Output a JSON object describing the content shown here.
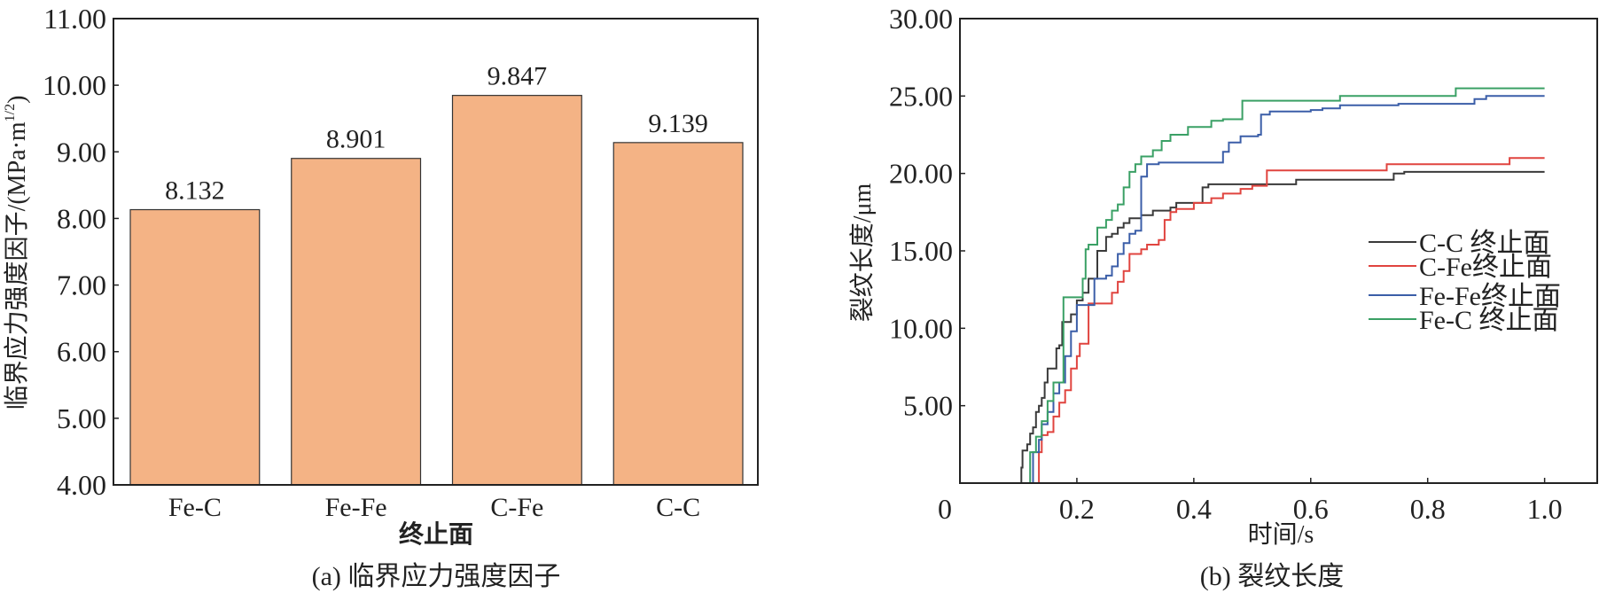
{
  "chart_data": [
    {
      "type": "bar",
      "title": "(a) 临界应力强度因子",
      "xlabel": "终止面",
      "ylabel": "临界应力强度因子/(MPa·m",
      "ylabel_sup": "1/2",
      "ylabel_end": ")",
      "categories": [
        "Fe-C",
        "Fe-Fe",
        "C-Fe",
        "C-C"
      ],
      "values": [
        8.132,
        8.901,
        9.847,
        9.139
      ],
      "value_labels": [
        "8.132",
        "8.901",
        "9.847",
        "9.139"
      ],
      "ylim": [
        4,
        11
      ],
      "yticks": [
        "4.00",
        "5.00",
        "6.00",
        "7.00",
        "8.00",
        "9.00",
        "10.00",
        "11.00"
      ],
      "colors": {
        "bar": "#f4b385",
        "edge": "#333333"
      }
    },
    {
      "type": "line",
      "title": "(b) 裂纹长度",
      "xlabel": "时间/s",
      "ylabel": "裂纹长度/μm",
      "xlim": [
        0,
        1.09
      ],
      "ylim": [
        0,
        30
      ],
      "xticks": [
        0,
        0.2,
        0.4,
        0.6,
        0.8,
        1.0
      ],
      "xtick_labels": [
        "0",
        "0.2",
        "0.4",
        "0.6",
        "0.8",
        "1.0"
      ],
      "yticks": [
        5,
        10,
        15,
        20,
        25,
        30
      ],
      "ytick_labels": [
        "5.00",
        "10.00",
        "15.00",
        "20.00",
        "25.00",
        "30.00"
      ],
      "legend_position": "center-right",
      "series": [
        {
          "name": "C-C 终止面",
          "color": "#3a3a3a",
          "points": [
            [
              0.1,
              0
            ],
            [
              0.105,
              1
            ],
            [
              0.107,
              2.1
            ],
            [
              0.115,
              2.5
            ],
            [
              0.12,
              3.2
            ],
            [
              0.125,
              3.6
            ],
            [
              0.13,
              4.6
            ],
            [
              0.135,
              5
            ],
            [
              0.14,
              5.5
            ],
            [
              0.145,
              6.5
            ],
            [
              0.15,
              7.4
            ],
            [
              0.165,
              8.7
            ],
            [
              0.17,
              8.9
            ],
            [
              0.175,
              10.4
            ],
            [
              0.19,
              10.9
            ],
            [
              0.2,
              11.8
            ],
            [
              0.21,
              12.3
            ],
            [
              0.22,
              13.2
            ],
            [
              0.235,
              15
            ],
            [
              0.25,
              15.9
            ],
            [
              0.26,
              16.1
            ],
            [
              0.27,
              16.5
            ],
            [
              0.28,
              16.8
            ],
            [
              0.29,
              17.1
            ],
            [
              0.31,
              17.3
            ],
            [
              0.33,
              17.6
            ],
            [
              0.36,
              17.8
            ],
            [
              0.37,
              18.1
            ],
            [
              0.415,
              19.1
            ],
            [
              0.425,
              19.3
            ],
            [
              0.575,
              19.6
            ],
            [
              0.742,
              20
            ],
            [
              0.76,
              20.1
            ],
            [
              1.0,
              20.1
            ]
          ]
        },
        {
          "name": "C-Fe终止面",
          "color": "#e0443f",
          "points": [
            [
              0.13,
              0
            ],
            [
              0.135,
              2
            ],
            [
              0.14,
              3.1
            ],
            [
              0.15,
              3.3
            ],
            [
              0.16,
              4.3
            ],
            [
              0.17,
              5.2
            ],
            [
              0.18,
              6
            ],
            [
              0.19,
              7.4
            ],
            [
              0.2,
              8.2
            ],
            [
              0.205,
              9
            ],
            [
              0.22,
              11.6
            ],
            [
              0.26,
              12.3
            ],
            [
              0.27,
              13
            ],
            [
              0.28,
              13.7
            ],
            [
              0.29,
              14.8
            ],
            [
              0.31,
              15.1
            ],
            [
              0.32,
              15.4
            ],
            [
              0.34,
              15.7
            ],
            [
              0.35,
              17
            ],
            [
              0.36,
              17.5
            ],
            [
              0.37,
              17.7
            ],
            [
              0.4,
              18.1
            ],
            [
              0.43,
              18.4
            ],
            [
              0.45,
              18.7
            ],
            [
              0.48,
              19
            ],
            [
              0.5,
              19.2
            ],
            [
              0.525,
              20.2
            ],
            [
              0.73,
              20.6
            ],
            [
              0.94,
              21
            ],
            [
              1.0,
              21
            ]
          ]
        },
        {
          "name": "Fe-Fe终止面",
          "color": "#3b5ea8",
          "points": [
            [
              0.119,
              0
            ],
            [
              0.125,
              2
            ],
            [
              0.135,
              2.8
            ],
            [
              0.14,
              3.8
            ],
            [
              0.15,
              4.6
            ],
            [
              0.16,
              5.8
            ],
            [
              0.17,
              6.5
            ],
            [
              0.18,
              8.2
            ],
            [
              0.19,
              9.8
            ],
            [
              0.2,
              11.5
            ],
            [
              0.23,
              13.2
            ],
            [
              0.25,
              13.4
            ],
            [
              0.26,
              14
            ],
            [
              0.27,
              14.8
            ],
            [
              0.28,
              15.5
            ],
            [
              0.29,
              16.1
            ],
            [
              0.3,
              16.3
            ],
            [
              0.31,
              19.8
            ],
            [
              0.32,
              20.6
            ],
            [
              0.34,
              20.7
            ],
            [
              0.45,
              21.4
            ],
            [
              0.46,
              22
            ],
            [
              0.48,
              22.4
            ],
            [
              0.51,
              22.5
            ],
            [
              0.515,
              23.8
            ],
            [
              0.53,
              24
            ],
            [
              0.6,
              24.1
            ],
            [
              0.62,
              24.2
            ],
            [
              0.65,
              24.4
            ],
            [
              0.75,
              24.5
            ],
            [
              0.88,
              24.8
            ],
            [
              0.9,
              25
            ],
            [
              1.0,
              25
            ]
          ]
        },
        {
          "name": "Fe-C 终止面",
          "color": "#3aa065",
          "points": [
            [
              0.114,
              0
            ],
            [
              0.12,
              2
            ],
            [
              0.13,
              3
            ],
            [
              0.14,
              4
            ],
            [
              0.15,
              5.3
            ],
            [
              0.16,
              6.5
            ],
            [
              0.177,
              12
            ],
            [
              0.2,
              12
            ],
            [
              0.21,
              13.2
            ],
            [
              0.215,
              15.1
            ],
            [
              0.22,
              15.4
            ],
            [
              0.235,
              16.5
            ],
            [
              0.25,
              17
            ],
            [
              0.26,
              17.6
            ],
            [
              0.27,
              18
            ],
            [
              0.28,
              19.1
            ],
            [
              0.29,
              20.1
            ],
            [
              0.3,
              20.6
            ],
            [
              0.31,
              21.1
            ],
            [
              0.33,
              21.5
            ],
            [
              0.345,
              22.1
            ],
            [
              0.36,
              22.5
            ],
            [
              0.39,
              23
            ],
            [
              0.43,
              23.4
            ],
            [
              0.45,
              23.5
            ],
            [
              0.483,
              24.7
            ],
            [
              0.65,
              25
            ],
            [
              0.848,
              25.5
            ],
            [
              1.0,
              25.5
            ]
          ]
        }
      ]
    }
  ]
}
